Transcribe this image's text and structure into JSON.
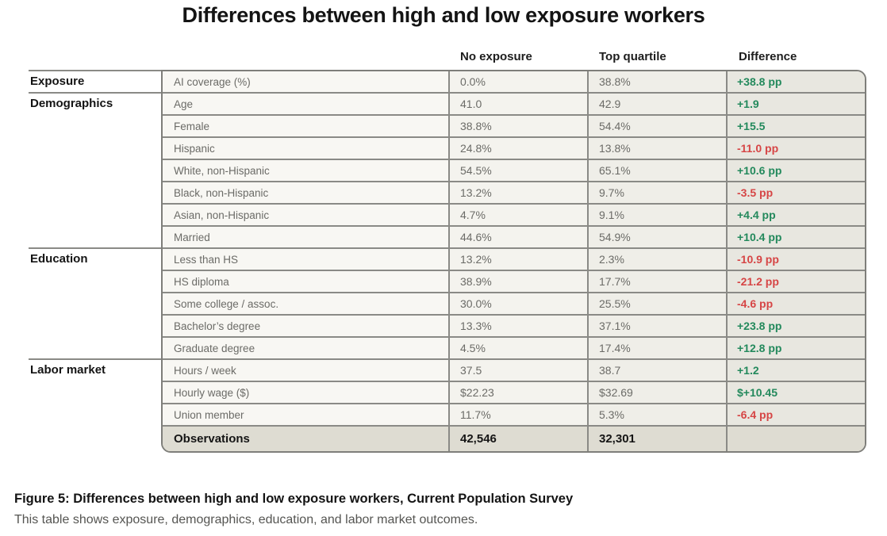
{
  "title": "Differences between high and low exposure workers",
  "columns": {
    "label": "",
    "no_exposure": "No exposure",
    "top_quartile": "Top quartile",
    "difference": "Difference"
  },
  "colors": {
    "positive": "#23895c",
    "negative": "#d64545",
    "footer_bg": "#dedcd2"
  },
  "groups": [
    {
      "name": "Exposure",
      "rows": [
        {
          "label": "AI coverage (%)",
          "no_exposure": "0.0%",
          "top_quartile": "38.8%",
          "difference": "+38.8 pp",
          "sign": "pos"
        }
      ]
    },
    {
      "name": "Demographics",
      "rows": [
        {
          "label": "Age",
          "no_exposure": "41.0",
          "top_quartile": "42.9",
          "difference": "+1.9",
          "sign": "pos"
        },
        {
          "label": "Female",
          "no_exposure": "38.8%",
          "top_quartile": "54.4%",
          "difference": "+15.5",
          "sign": "pos"
        },
        {
          "label": "Hispanic",
          "no_exposure": "24.8%",
          "top_quartile": "13.8%",
          "difference": "-11.0 pp",
          "sign": "neg"
        },
        {
          "label": "White, non-Hispanic",
          "no_exposure": "54.5%",
          "top_quartile": "65.1%",
          "difference": "+10.6 pp",
          "sign": "pos"
        },
        {
          "label": "Black, non-Hispanic",
          "no_exposure": "13.2%",
          "top_quartile": "9.7%",
          "difference": "-3.5 pp",
          "sign": "neg"
        },
        {
          "label": "Asian, non-Hispanic",
          "no_exposure": "4.7%",
          "top_quartile": "9.1%",
          "difference": "+4.4 pp",
          "sign": "pos"
        },
        {
          "label": "Married",
          "no_exposure": "44.6%",
          "top_quartile": "54.9%",
          "difference": "+10.4 pp",
          "sign": "pos"
        }
      ]
    },
    {
      "name": "Education",
      "rows": [
        {
          "label": "Less than HS",
          "no_exposure": "13.2%",
          "top_quartile": "2.3%",
          "difference": "-10.9 pp",
          "sign": "neg"
        },
        {
          "label": "HS diploma",
          "no_exposure": "38.9%",
          "top_quartile": "17.7%",
          "difference": "-21.2 pp",
          "sign": "neg"
        },
        {
          "label": "Some college / assoc.",
          "no_exposure": "30.0%",
          "top_quartile": "25.5%",
          "difference": "-4.6 pp",
          "sign": "neg"
        },
        {
          "label": "Bachelor’s degree",
          "no_exposure": "13.3%",
          "top_quartile": "37.1%",
          "difference": "+23.8 pp",
          "sign": "pos"
        },
        {
          "label": "Graduate degree",
          "no_exposure": "4.5%",
          "top_quartile": "17.4%",
          "difference": "+12.8 pp",
          "sign": "pos"
        }
      ]
    },
    {
      "name": "Labor market",
      "rows": [
        {
          "label": "Hours / week",
          "no_exposure": "37.5",
          "top_quartile": "38.7",
          "difference": "+1.2",
          "sign": "pos"
        },
        {
          "label": "Hourly wage ($)",
          "no_exposure": "$22.23",
          "top_quartile": "$32.69",
          "difference": "$+10.45",
          "sign": "pos"
        },
        {
          "label": "Union member",
          "no_exposure": "11.7%",
          "top_quartile": "5.3%",
          "difference": "-6.4 pp",
          "sign": "neg"
        }
      ]
    }
  ],
  "footer": {
    "label": "Observations",
    "no_exposure": "42,546",
    "top_quartile": "32,301",
    "difference": ""
  },
  "caption": {
    "title": "Figure 5: Differences between high and low exposure workers, Current Population Survey",
    "subtitle": "This table shows exposure, demographics, education, and labor market outcomes."
  }
}
